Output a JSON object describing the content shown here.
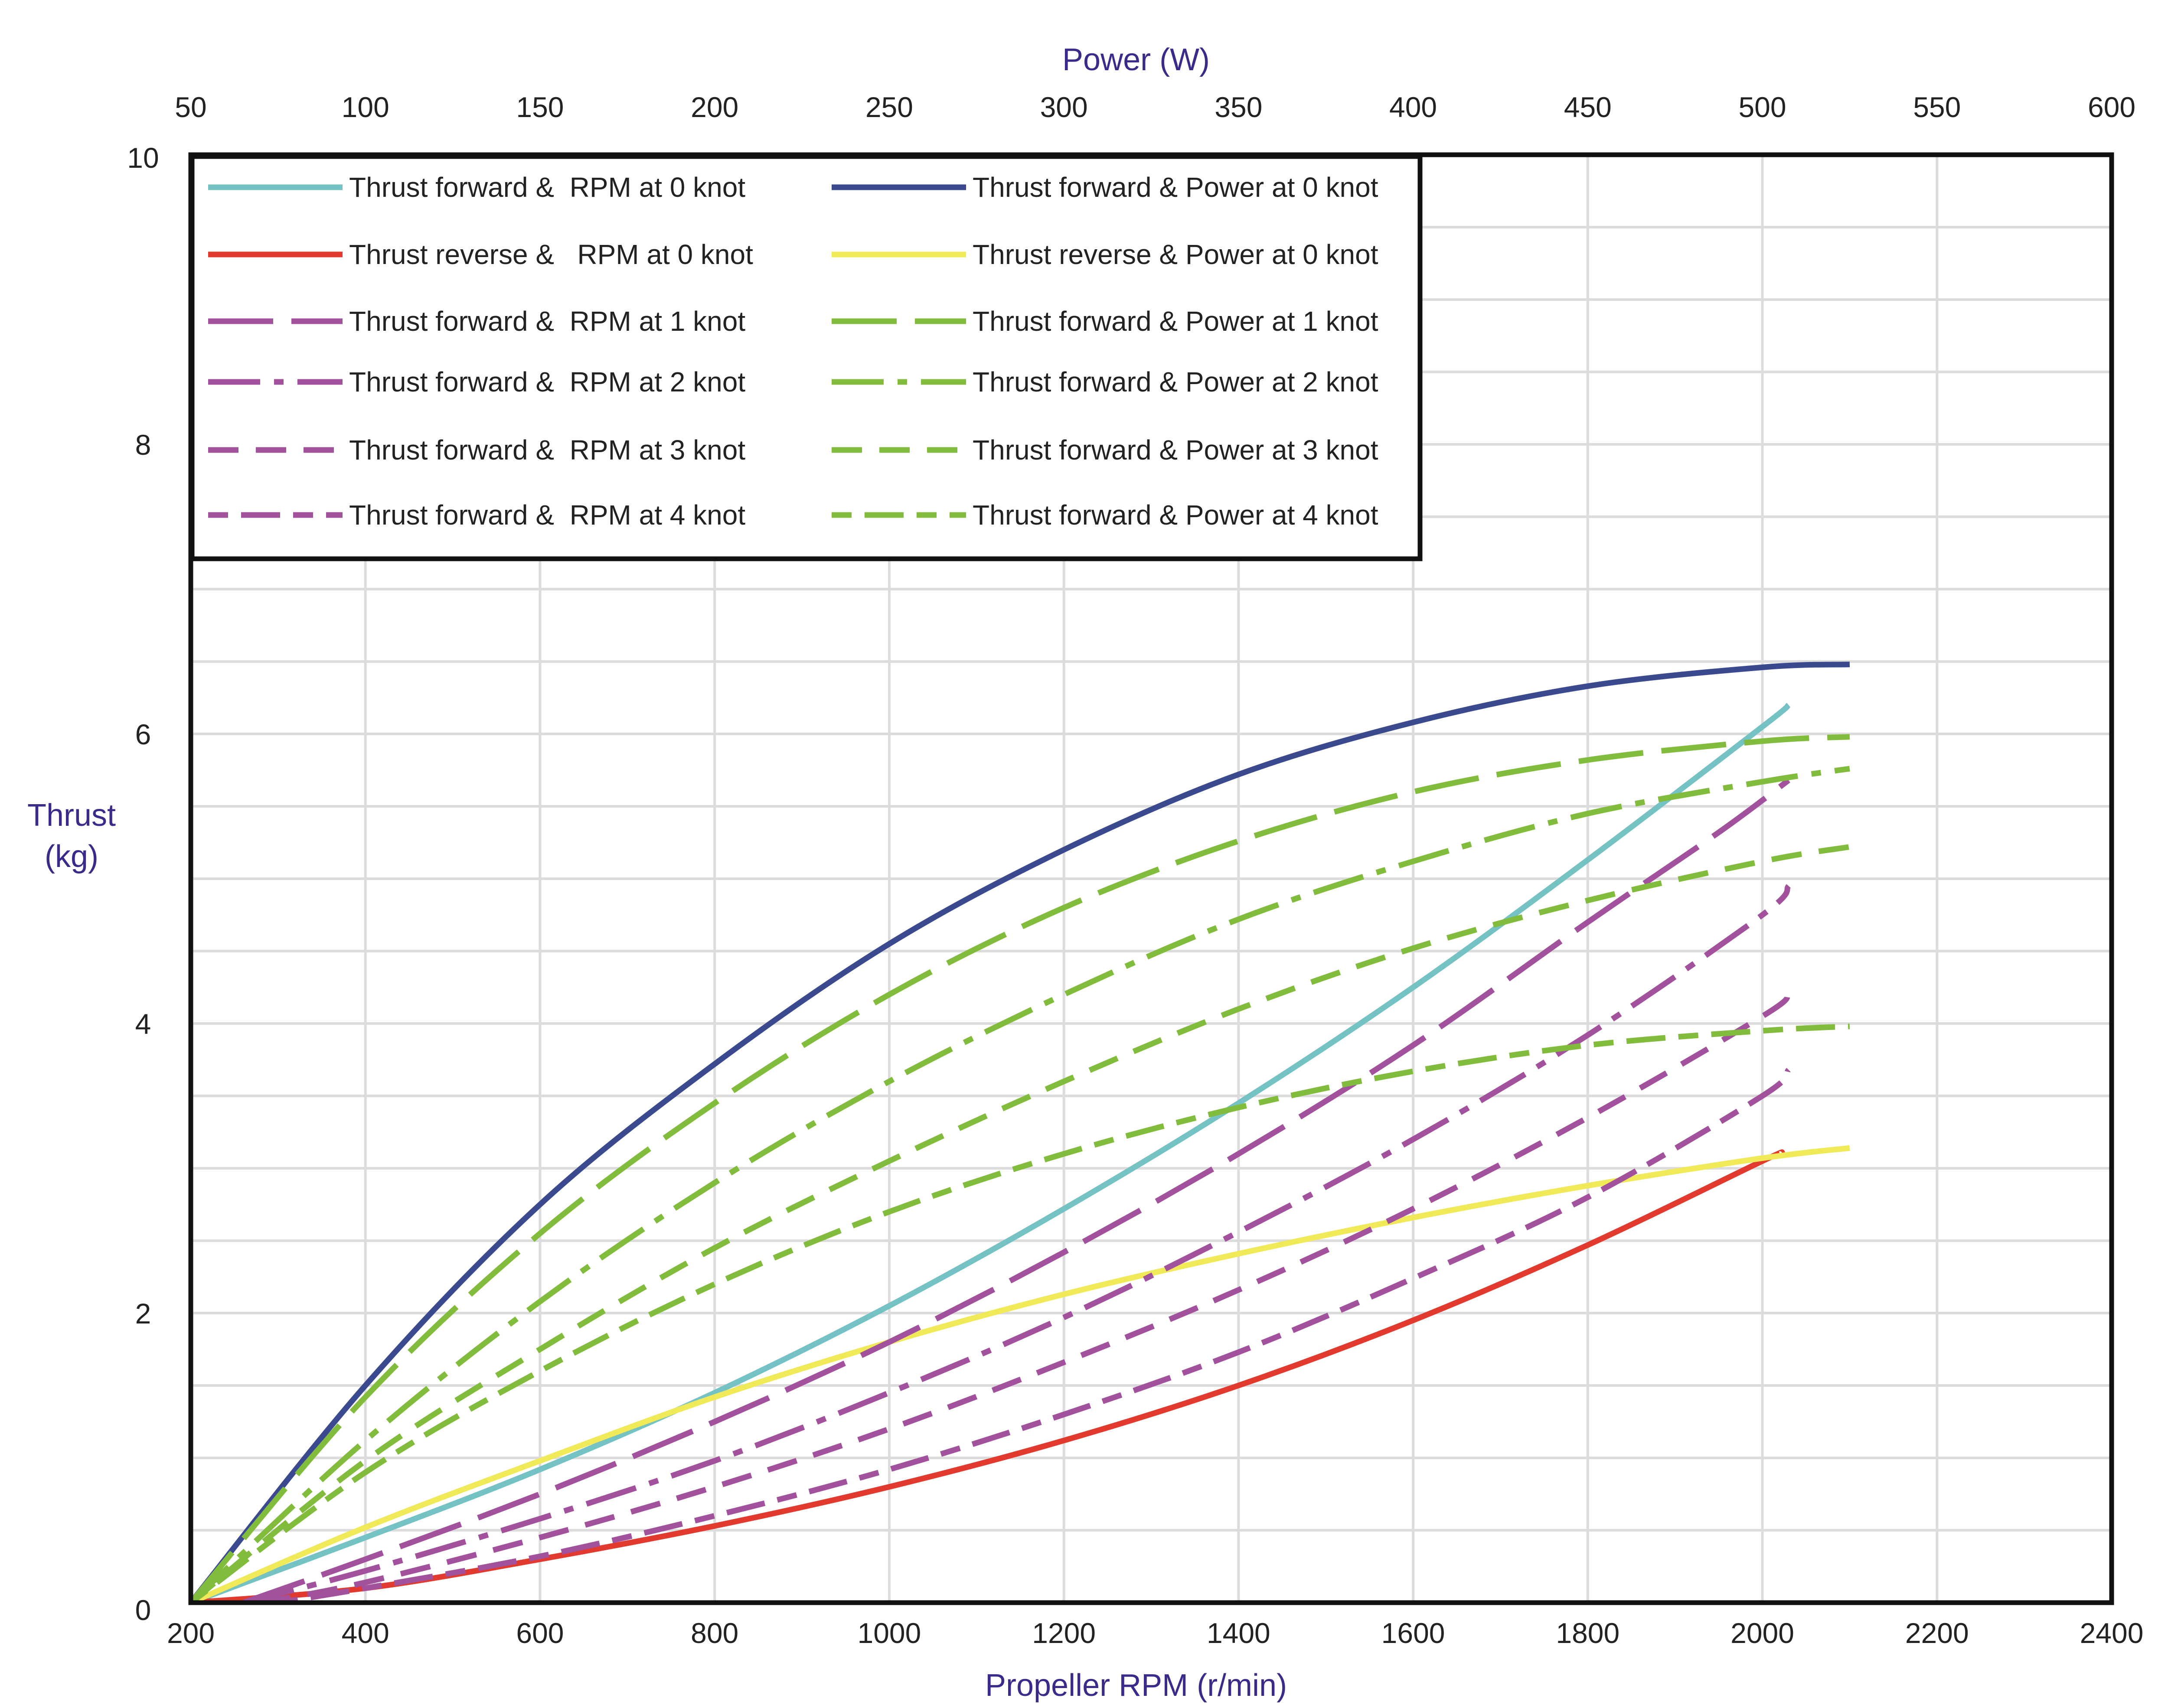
{
  "chart_data": {
    "type": "line",
    "title": "",
    "xlabel": "Propeller RPM (r/min)",
    "x2label": "Power (W)",
    "ylabel": [
      "Thrust",
      "(kg)"
    ],
    "xlim": [
      200,
      2400
    ],
    "x2lim": [
      50,
      600
    ],
    "ylim": [
      0,
      10
    ],
    "x_ticks": [
      "200",
      "400",
      "600",
      "800",
      "1000",
      "1200",
      "1400",
      "1600",
      "1800",
      "2000",
      "2200",
      "2400"
    ],
    "x2_ticks": [
      "50",
      "100",
      "150",
      "200",
      "250",
      "300",
      "350",
      "400",
      "450",
      "500",
      "550",
      "600"
    ],
    "y_ticks": [
      "0",
      "2",
      "4",
      "6",
      "8",
      "10"
    ],
    "grid": true,
    "legend_position": "top-left",
    "colors": {
      "axis_title": "#3c2a8a",
      "cyan": "#74c2c4",
      "navy": "#3b4a8f",
      "red": "#e23a2e",
      "yellow": "#f0e958",
      "purple": "#a2519c",
      "green": "#82bc3c",
      "grid": "#dcdcdc",
      "frame": "#111111"
    },
    "series": [
      {
        "name": "Thrust forward &  RPM at 0 knot",
        "axis": "rpm",
        "color": "cyan",
        "dash": "solid",
        "points": [
          [
            200,
            0
          ],
          [
            400,
            0.45
          ],
          [
            600,
            0.92
          ],
          [
            800,
            1.45
          ],
          [
            1000,
            2.05
          ],
          [
            1200,
            2.72
          ],
          [
            1400,
            3.45
          ],
          [
            1600,
            4.25
          ],
          [
            1800,
            5.13
          ],
          [
            2000,
            6.05
          ],
          [
            2030,
            6.2
          ]
        ]
      },
      {
        "name": "Thrust forward & Power at 0 knot",
        "axis": "power",
        "color": "navy",
        "dash": "solid",
        "points": [
          [
            50,
            0
          ],
          [
            100,
            1.5
          ],
          [
            150,
            2.75
          ],
          [
            200,
            3.72
          ],
          [
            250,
            4.55
          ],
          [
            300,
            5.2
          ],
          [
            350,
            5.72
          ],
          [
            400,
            6.08
          ],
          [
            450,
            6.33
          ],
          [
            500,
            6.46
          ],
          [
            525,
            6.48
          ]
        ]
      },
      {
        "name": "Thrust reverse &   RPM at 0 knot",
        "axis": "rpm",
        "color": "red",
        "dash": "solid",
        "points": [
          [
            200,
            0
          ],
          [
            400,
            0.1
          ],
          [
            600,
            0.3
          ],
          [
            800,
            0.53
          ],
          [
            1000,
            0.8
          ],
          [
            1200,
            1.12
          ],
          [
            1400,
            1.5
          ],
          [
            1600,
            1.95
          ],
          [
            1800,
            2.47
          ],
          [
            2000,
            3.05
          ],
          [
            2020,
            3.1
          ]
        ]
      },
      {
        "name": "Thrust reverse & Power at 0 knot",
        "axis": "power",
        "color": "yellow",
        "dash": "solid",
        "points": [
          [
            50,
            0
          ],
          [
            100,
            0.52
          ],
          [
            150,
            0.98
          ],
          [
            200,
            1.42
          ],
          [
            250,
            1.8
          ],
          [
            300,
            2.13
          ],
          [
            350,
            2.41
          ],
          [
            400,
            2.66
          ],
          [
            450,
            2.88
          ],
          [
            500,
            3.07
          ],
          [
            525,
            3.14
          ]
        ]
      },
      {
        "name": "Thrust forward &  RPM at 1 knot",
        "axis": "rpm",
        "color": "purple",
        "dash": "long",
        "points": [
          [
            260,
            0
          ],
          [
            400,
            0.3
          ],
          [
            600,
            0.75
          ],
          [
            800,
            1.25
          ],
          [
            1000,
            1.8
          ],
          [
            1200,
            2.42
          ],
          [
            1400,
            3.1
          ],
          [
            1600,
            3.85
          ],
          [
            1800,
            4.7
          ],
          [
            1950,
            5.32
          ],
          [
            2030,
            5.68
          ]
        ]
      },
      {
        "name": "Thrust forward & Power at 1 knot",
        "axis": "power",
        "color": "green",
        "dash": "long",
        "points": [
          [
            50,
            0
          ],
          [
            100,
            1.42
          ],
          [
            150,
            2.55
          ],
          [
            200,
            3.45
          ],
          [
            250,
            4.2
          ],
          [
            300,
            4.8
          ],
          [
            350,
            5.26
          ],
          [
            400,
            5.6
          ],
          [
            450,
            5.82
          ],
          [
            500,
            5.95
          ],
          [
            525,
            5.98
          ]
        ]
      },
      {
        "name": "Thrust forward &  RPM at 2 knot",
        "axis": "rpm",
        "color": "purple",
        "dash": "dashdot",
        "points": [
          [
            260,
            0
          ],
          [
            400,
            0.22
          ],
          [
            600,
            0.58
          ],
          [
            800,
            0.98
          ],
          [
            1000,
            1.45
          ],
          [
            1200,
            1.97
          ],
          [
            1400,
            2.56
          ],
          [
            1600,
            3.2
          ],
          [
            1800,
            3.92
          ],
          [
            2000,
            4.75
          ],
          [
            2030,
            4.95
          ]
        ]
      },
      {
        "name": "Thrust forward & Power at 2 knot",
        "axis": "power",
        "color": "green",
        "dash": "dashdot",
        "points": [
          [
            50,
            0
          ],
          [
            100,
            1.12
          ],
          [
            150,
            2.08
          ],
          [
            200,
            2.9
          ],
          [
            250,
            3.6
          ],
          [
            300,
            4.2
          ],
          [
            350,
            4.72
          ],
          [
            400,
            5.12
          ],
          [
            450,
            5.45
          ],
          [
            500,
            5.67
          ],
          [
            525,
            5.76
          ]
        ]
      },
      {
        "name": "Thrust forward &  RPM at 3 knot",
        "axis": "rpm",
        "color": "purple",
        "dash": "medium",
        "points": [
          [
            280,
            0
          ],
          [
            400,
            0.14
          ],
          [
            600,
            0.45
          ],
          [
            800,
            0.8
          ],
          [
            1000,
            1.2
          ],
          [
            1200,
            1.66
          ],
          [
            1400,
            2.16
          ],
          [
            1600,
            2.72
          ],
          [
            1800,
            3.35
          ],
          [
            2000,
            4.05
          ],
          [
            2030,
            4.2
          ]
        ]
      },
      {
        "name": "Thrust forward & Power at 3 knot",
        "axis": "power",
        "color": "green",
        "dash": "medium",
        "points": [
          [
            50,
            0
          ],
          [
            100,
            0.98
          ],
          [
            150,
            1.75
          ],
          [
            200,
            2.45
          ],
          [
            250,
            3.05
          ],
          [
            300,
            3.6
          ],
          [
            350,
            4.1
          ],
          [
            400,
            4.52
          ],
          [
            450,
            4.85
          ],
          [
            500,
            5.12
          ],
          [
            525,
            5.22
          ]
        ]
      },
      {
        "name": "Thrust forward &  RPM at 4 knot",
        "axis": "rpm",
        "color": "purple",
        "dash": "dotdash",
        "points": [
          [
            300,
            0
          ],
          [
            400,
            0.1
          ],
          [
            600,
            0.32
          ],
          [
            800,
            0.6
          ],
          [
            1000,
            0.92
          ],
          [
            1200,
            1.3
          ],
          [
            1400,
            1.73
          ],
          [
            1600,
            2.24
          ],
          [
            1800,
            2.8
          ],
          [
            2000,
            3.5
          ],
          [
            2030,
            3.68
          ]
        ]
      },
      {
        "name": "Thrust forward & Power at 4 knot",
        "axis": "power",
        "color": "green",
        "dash": "dotdash",
        "points": [
          [
            50,
            0
          ],
          [
            100,
            0.9
          ],
          [
            150,
            1.6
          ],
          [
            200,
            2.2
          ],
          [
            250,
            2.7
          ],
          [
            300,
            3.1
          ],
          [
            350,
            3.42
          ],
          [
            400,
            3.67
          ],
          [
            450,
            3.85
          ],
          [
            500,
            3.95
          ],
          [
            525,
            3.98
          ]
        ]
      }
    ]
  }
}
